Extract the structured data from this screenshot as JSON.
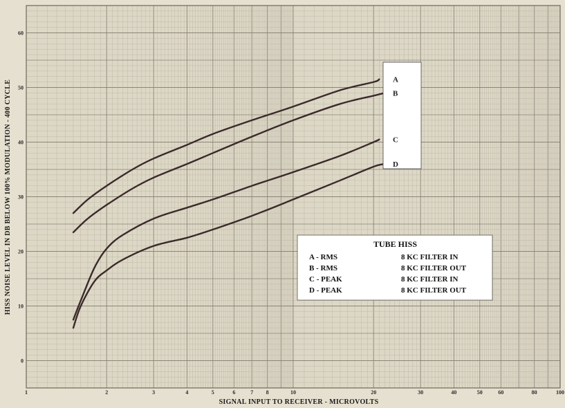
{
  "chart_data": {
    "type": "line",
    "xlabel": "SIGNAL INPUT TO RECEIVER - MICROVOLTS",
    "ylabel": "HISS NOISE LEVEL IN DB BELOW 100% MODULATION - 400 CYCLE",
    "xscale": "log",
    "xlim": [
      1,
      100
    ],
    "ylim": [
      -5,
      65
    ],
    "grid": true,
    "x_ticks": [
      1,
      2,
      3,
      4,
      5,
      6,
      7,
      8,
      10,
      20,
      30,
      40,
      50,
      60,
      80,
      100
    ],
    "x_tick_labels": [
      "1",
      "2",
      "3",
      "4",
      "5",
      "6",
      "7",
      "8",
      "10",
      "20",
      "30",
      "40",
      "50",
      "60",
      "80",
      "100"
    ],
    "y_ticks": [
      0,
      10,
      20,
      30,
      40,
      50,
      60
    ],
    "y_tick_labels": [
      "0",
      "10",
      "20",
      "30",
      "40",
      "50",
      "60"
    ],
    "series": [
      {
        "name": "A",
        "x": [
          1.5,
          1.7,
          2.0,
          2.5,
          3.0,
          4.0,
          5.0,
          7.0,
          10.0,
          15.0,
          20.0,
          21.0
        ],
        "y": [
          27,
          29.5,
          32,
          35,
          37,
          39.5,
          41.5,
          44,
          46.5,
          49.5,
          51,
          51.5
        ]
      },
      {
        "name": "B",
        "x": [
          1.5,
          1.7,
          2.0,
          2.5,
          3.0,
          4.0,
          5.0,
          7.0,
          10.0,
          15.0,
          20.0,
          22.0
        ],
        "y": [
          23.5,
          26,
          28.5,
          31.5,
          33.5,
          36,
          38,
          41,
          44,
          47,
          48.5,
          49
        ]
      },
      {
        "name": "C",
        "x": [
          1.5,
          1.6,
          1.8,
          2.0,
          2.3,
          3.0,
          4.0,
          5.0,
          7.0,
          10.0,
          15.0,
          20.0,
          21.0
        ],
        "y": [
          7.5,
          11,
          17,
          20.5,
          23,
          26,
          28,
          29.5,
          32,
          34.5,
          37.5,
          40,
          40.5
        ]
      },
      {
        "name": "D",
        "x": [
          1.5,
          1.6,
          1.8,
          2.0,
          2.3,
          3.0,
          4.0,
          5.0,
          7.0,
          10.0,
          15.0,
          20.0,
          22.0
        ],
        "y": [
          6,
          10,
          14.5,
          16.5,
          18.5,
          21,
          22.5,
          24,
          26.5,
          29.5,
          33,
          35.5,
          36
        ]
      }
    ],
    "curve_letters": [
      "A",
      "B",
      "C",
      "D"
    ],
    "legend": {
      "title": "TUBE HISS",
      "entries": [
        {
          "key": "A - RMS",
          "desc": "8 KC FILTER IN"
        },
        {
          "key": "B - RMS",
          "desc": "8 KC FILTER OUT"
        },
        {
          "key": "C - PEAK",
          "desc": "8 KC FILTER IN"
        },
        {
          "key": "D - PEAK",
          "desc": "8 KC FILTER OUT"
        }
      ]
    },
    "colors": {
      "paper": "#e6e0d0",
      "grid_major": "#8b8578",
      "grid_minor": "#b9b2a2",
      "curve": "#3a2a2a",
      "legend_bg": "#ffffff"
    }
  }
}
